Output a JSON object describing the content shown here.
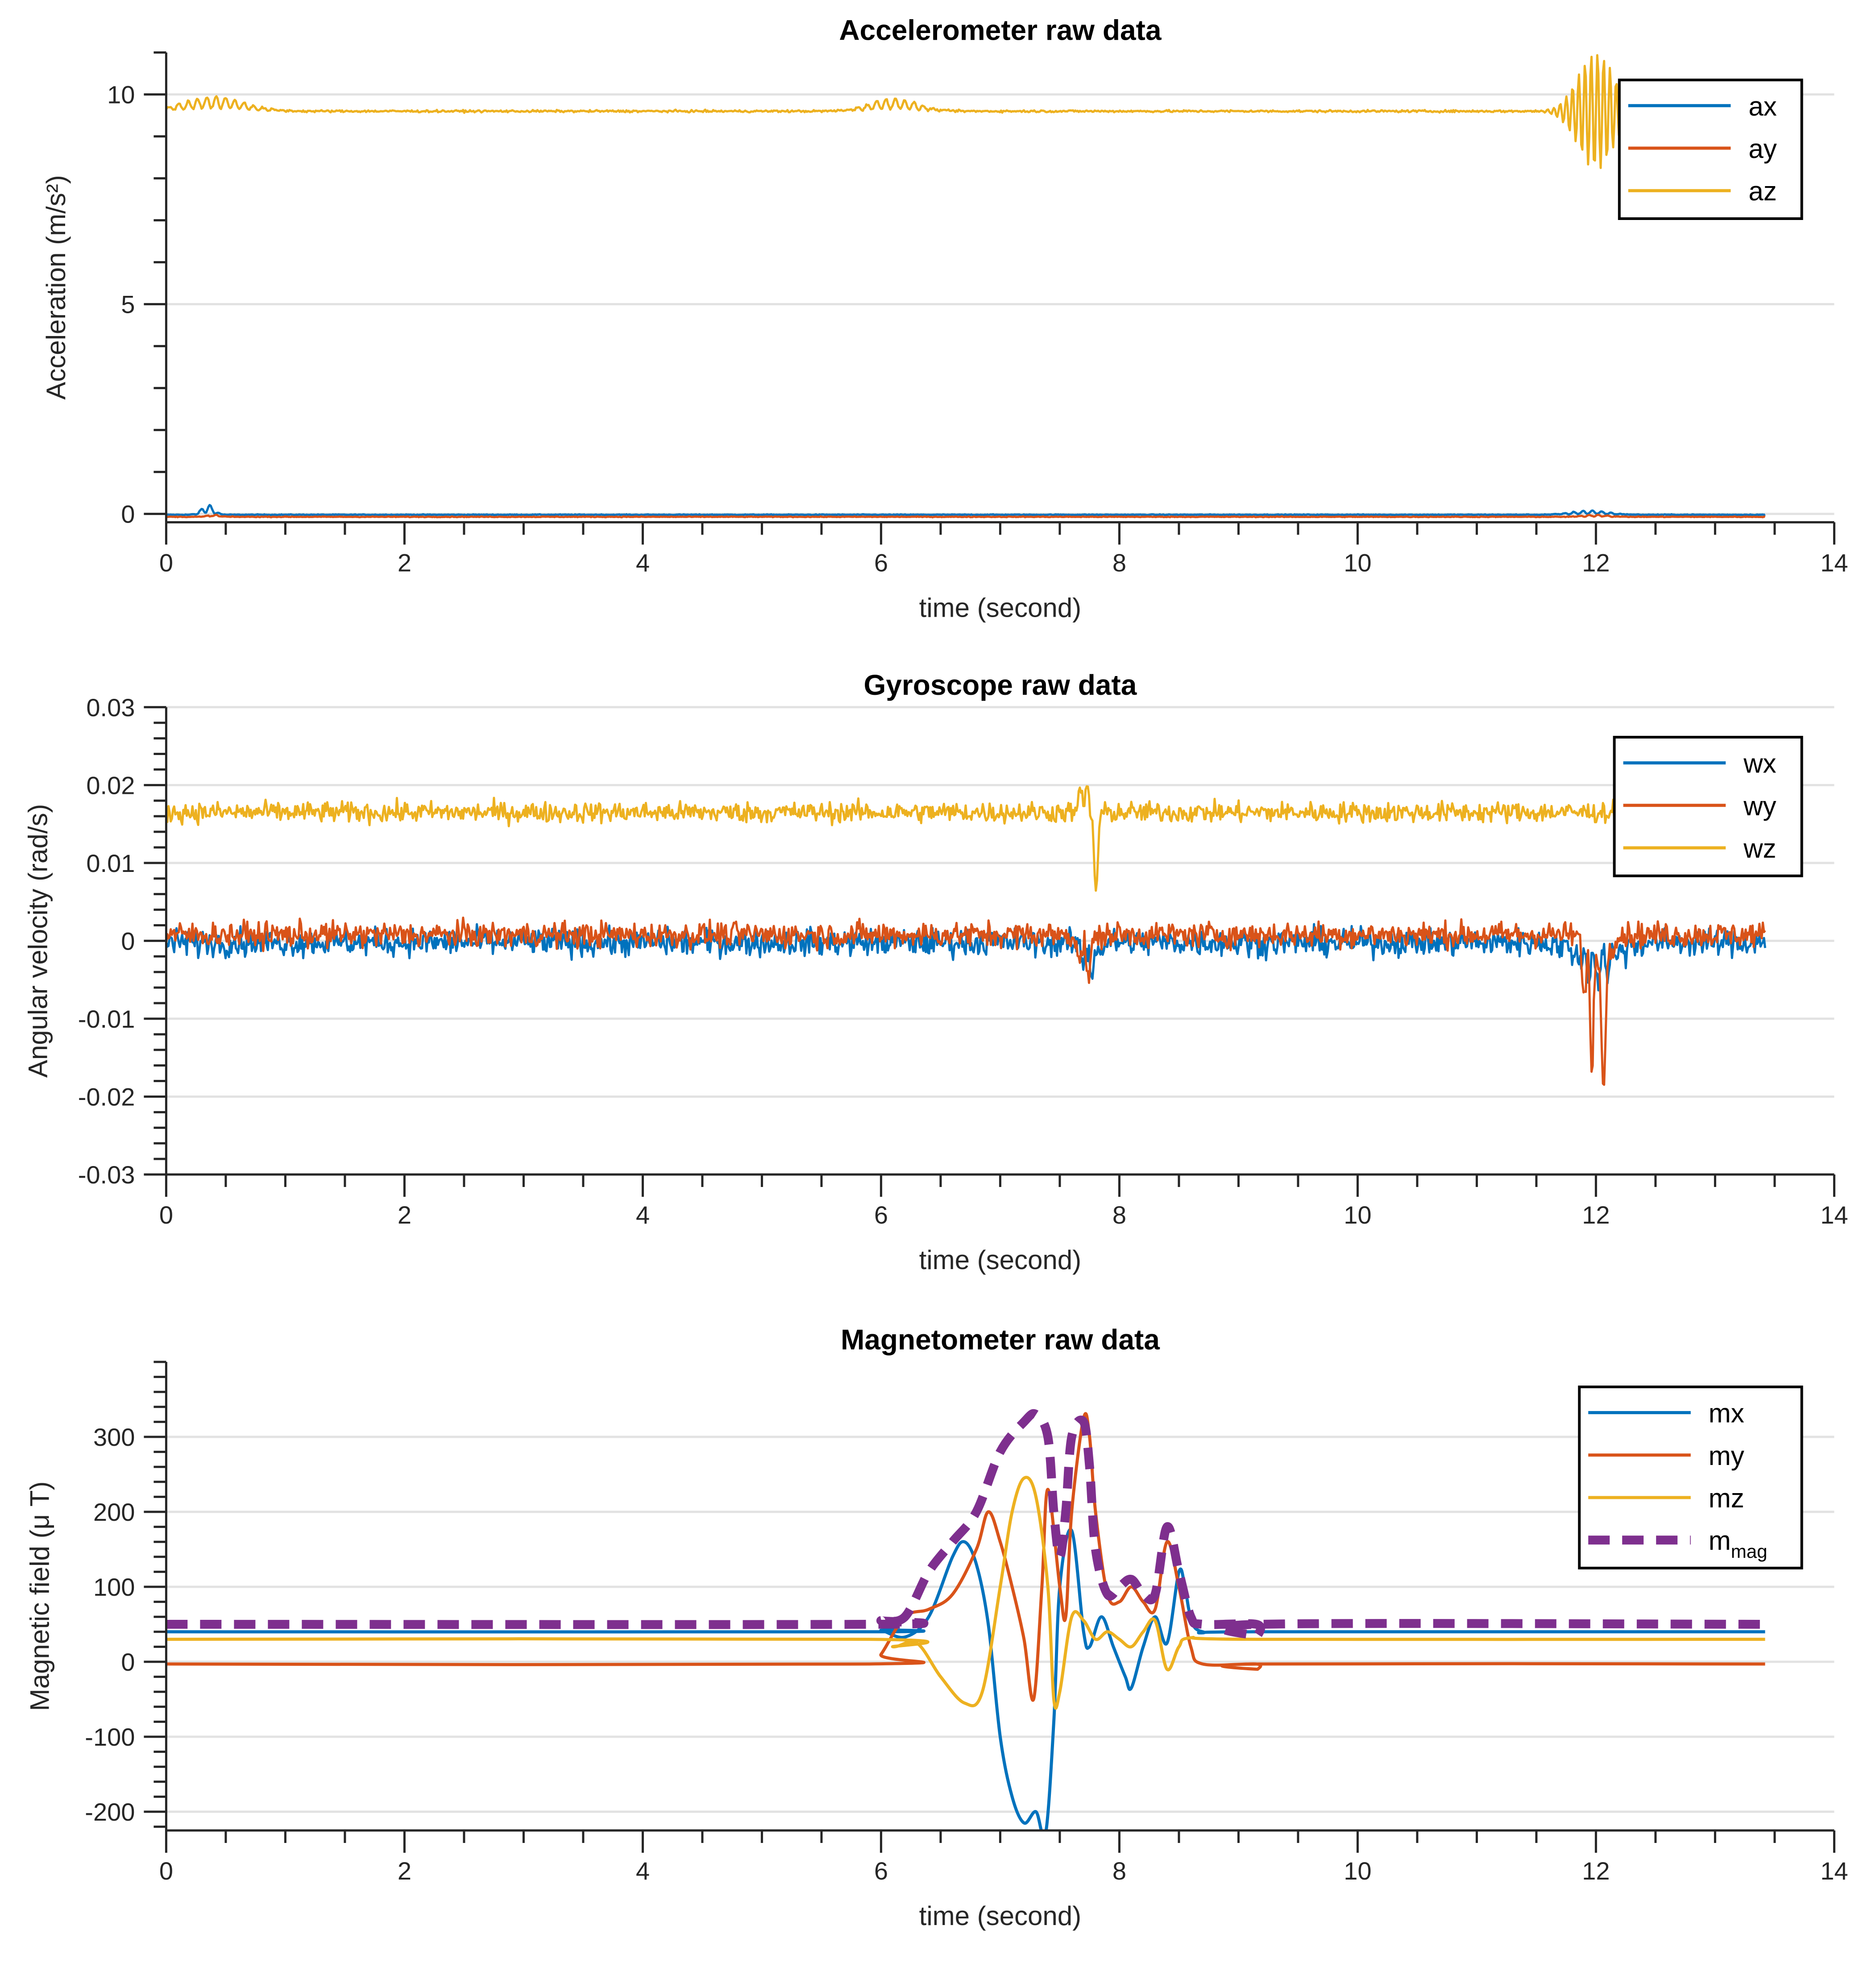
{
  "chart_data": [
    {
      "type": "line",
      "title": "Accelerometer raw data",
      "xlabel": "time (second)",
      "ylabel": "Acceleration (m/s²)",
      "xlim": [
        0,
        14
      ],
      "ylim": [
        -0.2,
        11
      ],
      "xticks": [
        0,
        2,
        4,
        6,
        8,
        10,
        12,
        14
      ],
      "xtick_labels": [
        "0",
        "2",
        "4",
        "6",
        "8",
        "10",
        "12",
        "14"
      ],
      "yticks": [
        0,
        5,
        10
      ],
      "ytick_labels": [
        "0",
        "5",
        "10"
      ],
      "grid": "horizontal",
      "legend_position": "top-right",
      "series": [
        {
          "name": "ax",
          "color": "#0072BD",
          "style": "solid",
          "baseline": -0.02,
          "noise": 0.008,
          "events": [
            {
              "t": 0.35,
              "amp": 0.25,
              "width": 0.05
            },
            {
              "t": 11.95,
              "amp": 0.1,
              "width": 0.15
            }
          ]
        },
        {
          "name": "ay",
          "color": "#D95319",
          "style": "solid",
          "baseline": -0.07,
          "noise": 0.008,
          "events": [
            {
              "t": 0.4,
              "amp": 0.05,
              "width": 0.05
            },
            {
              "t": 12.0,
              "amp": 0.05,
              "width": 0.1
            }
          ]
        },
        {
          "name": "az",
          "color": "#EDB120",
          "style": "solid",
          "baseline": 9.6,
          "noise": 0.025,
          "events": [
            {
              "t": 0.4,
              "amp": 0.35,
              "width": 0.25
            },
            {
              "t": 6.1,
              "amp": 0.3,
              "width": 0.2
            },
            {
              "t": 12.0,
              "amp": 1.4,
              "width": 0.15
            }
          ]
        }
      ]
    },
    {
      "type": "line",
      "title": "Gyroscope raw data",
      "xlabel": "time (second)",
      "ylabel": "Angular velocity (rad/s)",
      "xlim": [
        0,
        14
      ],
      "ylim": [
        -0.03,
        0.03
      ],
      "xticks": [
        0,
        2,
        4,
        6,
        8,
        10,
        12,
        14
      ],
      "xtick_labels": [
        "0",
        "2",
        "4",
        "6",
        "8",
        "10",
        "12",
        "14"
      ],
      "yticks": [
        -0.03,
        -0.02,
        -0.01,
        0,
        0.01,
        0.02,
        0.03
      ],
      "ytick_labels": [
        "-0.03",
        "-0.02",
        "-0.01",
        "0",
        "0.01",
        "0.02",
        "0.03"
      ],
      "grid": "horizontal",
      "legend_position": "top-right",
      "series": [
        {
          "name": "wx",
          "color": "#0072BD",
          "style": "solid",
          "baseline": -0.0002,
          "noise": 0.0017,
          "events": [
            {
              "t": 7.75,
              "amp": -0.004,
              "width": 0.06
            },
            {
              "t": 12.0,
              "amp": -0.005,
              "width": 0.15
            }
          ]
        },
        {
          "name": "wy",
          "color": "#D95319",
          "style": "solid",
          "baseline": 0.0008,
          "noise": 0.0016,
          "events": [
            {
              "t": 7.72,
              "amp": -0.006,
              "width": 0.05
            },
            {
              "t": 11.95,
              "amp": -0.022,
              "width": 0.04
            },
            {
              "t": 12.05,
              "amp": -0.022,
              "width": 0.04
            },
            {
              "t": 11.98,
              "amp": 0.012,
              "width": 0.03
            }
          ]
        },
        {
          "name": "wz",
          "color": "#EDB120",
          "style": "solid",
          "baseline": 0.0165,
          "noise": 0.0013,
          "events": [
            {
              "t": 7.72,
              "amp": 0.006,
              "width": 0.04
            },
            {
              "t": 7.79,
              "amp": -0.012,
              "width": 0.03
            }
          ]
        }
      ]
    },
    {
      "type": "line",
      "title": "Magnetometer raw data",
      "xlabel": "time (second)",
      "ylabel": "Magnetic field (μ T)",
      "xlim": [
        0,
        14
      ],
      "ylim": [
        -225,
        400
      ],
      "xticks": [
        0,
        2,
        4,
        6,
        8,
        10,
        12,
        14
      ],
      "xtick_labels": [
        "0",
        "2",
        "4",
        "6",
        "8",
        "10",
        "12",
        "14"
      ],
      "yticks": [
        -200,
        -100,
        0,
        100,
        200,
        300
      ],
      "ytick_labels": [
        "-200",
        "-100",
        "0",
        "100",
        "200",
        "300"
      ],
      "grid": "horizontal",
      "legend_position": "top-right",
      "series": [
        {
          "name": "mx",
          "color": "#0072BD",
          "style": "solid",
          "points": [
            [
              0,
              40
            ],
            [
              5.9,
              40
            ],
            [
              6.0,
              42
            ],
            [
              6.2,
              33
            ],
            [
              6.4,
              60
            ],
            [
              6.6,
              140
            ],
            [
              6.7,
              160
            ],
            [
              6.8,
              130
            ],
            [
              6.9,
              50
            ],
            [
              7.0,
              -100
            ],
            [
              7.1,
              -180
            ],
            [
              7.2,
              -215
            ],
            [
              7.3,
              -200
            ],
            [
              7.38,
              -230
            ],
            [
              7.45,
              -80
            ],
            [
              7.5,
              100
            ],
            [
              7.6,
              175
            ],
            [
              7.7,
              40
            ],
            [
              7.75,
              20
            ],
            [
              7.85,
              60
            ],
            [
              7.95,
              20
            ],
            [
              8.05,
              -20
            ],
            [
              8.1,
              -35
            ],
            [
              8.2,
              20
            ],
            [
              8.3,
              60
            ],
            [
              8.4,
              25
            ],
            [
              8.5,
              120
            ],
            [
              8.55,
              100
            ],
            [
              8.6,
              60
            ],
            [
              8.7,
              40
            ],
            [
              9.15,
              40
            ],
            [
              13.42,
              40
            ]
          ]
        },
        {
          "name": "my",
          "color": "#D95319",
          "style": "solid",
          "points": [
            [
              0,
              -3
            ],
            [
              5.9,
              -3
            ],
            [
              6.0,
              10
            ],
            [
              6.2,
              60
            ],
            [
              6.4,
              70
            ],
            [
              6.6,
              90
            ],
            [
              6.8,
              150
            ],
            [
              6.9,
              200
            ],
            [
              7.0,
              160
            ],
            [
              7.1,
              100
            ],
            [
              7.2,
              30
            ],
            [
              7.28,
              -50
            ],
            [
              7.35,
              100
            ],
            [
              7.4,
              230
            ],
            [
              7.5,
              100
            ],
            [
              7.55,
              60
            ],
            [
              7.6,
              200
            ],
            [
              7.7,
              325
            ],
            [
              7.75,
              300
            ],
            [
              7.8,
              200
            ],
            [
              7.9,
              90
            ],
            [
              8.0,
              80
            ],
            [
              8.1,
              100
            ],
            [
              8.2,
              80
            ],
            [
              8.3,
              70
            ],
            [
              8.4,
              160
            ],
            [
              8.5,
              100
            ],
            [
              8.6,
              20
            ],
            [
              8.7,
              -3
            ],
            [
              9.15,
              -3
            ],
            [
              9.16,
              -10
            ],
            [
              9.18,
              -3
            ],
            [
              13.42,
              -3
            ]
          ]
        },
        {
          "name": "mz",
          "color": "#EDB120",
          "style": "solid",
          "points": [
            [
              0,
              30
            ],
            [
              5.9,
              30
            ],
            [
              6.1,
              20
            ],
            [
              6.3,
              25
            ],
            [
              6.5,
              -20
            ],
            [
              6.7,
              -55
            ],
            [
              6.85,
              -40
            ],
            [
              7.0,
              100
            ],
            [
              7.1,
              200
            ],
            [
              7.2,
              245
            ],
            [
              7.3,
              220
            ],
            [
              7.4,
              100
            ],
            [
              7.45,
              -50
            ],
            [
              7.5,
              -40
            ],
            [
              7.6,
              60
            ],
            [
              7.7,
              55
            ],
            [
              7.8,
              30
            ],
            [
              7.9,
              40
            ],
            [
              8.0,
              30
            ],
            [
              8.1,
              20
            ],
            [
              8.2,
              40
            ],
            [
              8.3,
              55
            ],
            [
              8.4,
              -10
            ],
            [
              8.5,
              20
            ],
            [
              8.6,
              32
            ],
            [
              9.15,
              30
            ],
            [
              13.42,
              30
            ]
          ]
        },
        {
          "name": "m_mag",
          "legend_main": "m",
          "legend_sub": "mag",
          "color": "#7E2F8E",
          "style": "dashed",
          "points": [
            [
              0,
              50
            ],
            [
              5.9,
              50
            ],
            [
              6.0,
              55
            ],
            [
              6.2,
              60
            ],
            [
              6.4,
              120
            ],
            [
              6.6,
              160
            ],
            [
              6.8,
              200
            ],
            [
              7.0,
              280
            ],
            [
              7.2,
              320
            ],
            [
              7.3,
              330
            ],
            [
              7.4,
              300
            ],
            [
              7.45,
              200
            ],
            [
              7.5,
              140
            ],
            [
              7.55,
              200
            ],
            [
              7.6,
              300
            ],
            [
              7.7,
              320
            ],
            [
              7.75,
              260
            ],
            [
              7.8,
              150
            ],
            [
              7.9,
              90
            ],
            [
              8.0,
              100
            ],
            [
              8.1,
              110
            ],
            [
              8.2,
              90
            ],
            [
              8.3,
              90
            ],
            [
              8.4,
              180
            ],
            [
              8.5,
              120
            ],
            [
              8.6,
              60
            ],
            [
              8.7,
              50
            ],
            [
              9.15,
              50
            ],
            [
              9.16,
              35
            ],
            [
              9.18,
              50
            ],
            [
              13.42,
              50
            ]
          ]
        }
      ]
    }
  ]
}
